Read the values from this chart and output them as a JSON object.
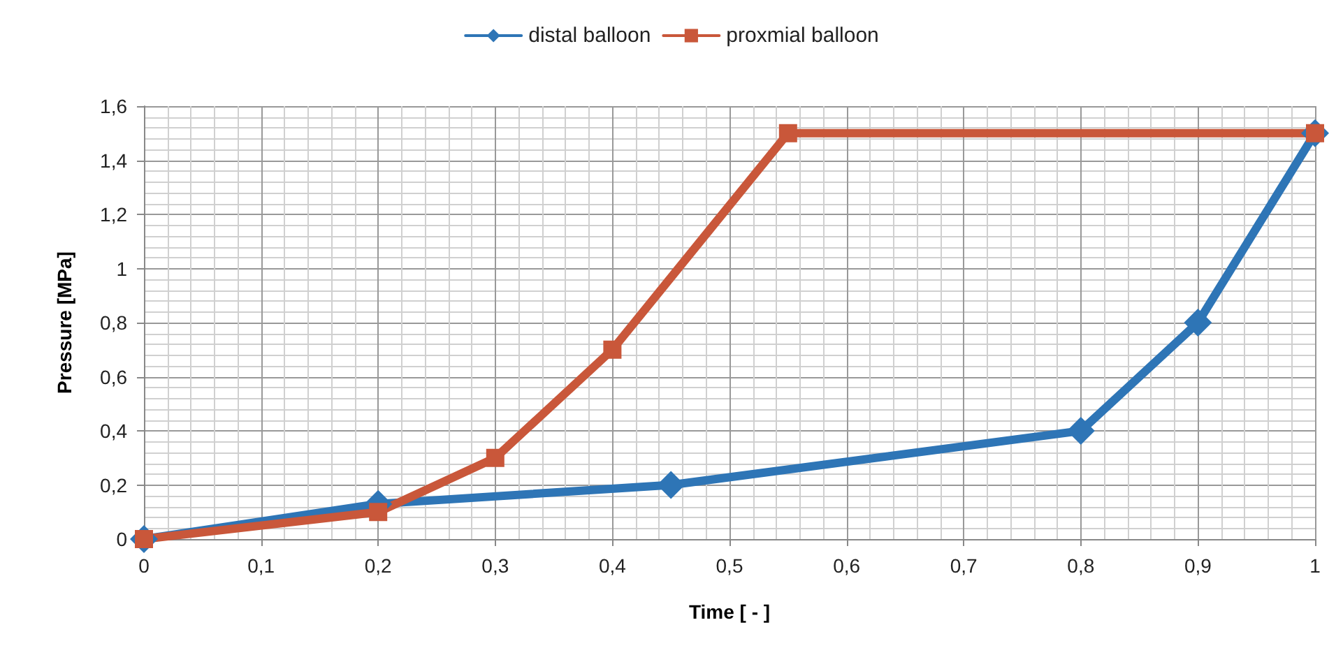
{
  "chart_data": {
    "type": "line",
    "xlabel": "Time [ - ]",
    "ylabel": "Pressure [MPa]",
    "xlim": [
      0,
      1
    ],
    "ylim": [
      0,
      1.6
    ],
    "xticks": [
      0,
      {
        "value": 0.1,
        "label": "0,1"
      },
      {
        "value": 0.2,
        "label": "0,2"
      },
      {
        "value": 0.3,
        "label": "0,3"
      },
      {
        "value": 0.4,
        "label": "0,4"
      },
      {
        "value": 0.5,
        "label": "0,5"
      },
      {
        "value": 0.6,
        "label": "0,6"
      },
      {
        "value": 0.7,
        "label": "0,7"
      },
      {
        "value": 0.8,
        "label": "0,8"
      },
      {
        "value": 0.9,
        "label": "0,9"
      },
      1
    ],
    "yticks": [
      0,
      {
        "value": 0.2,
        "label": "0,2"
      },
      {
        "value": 0.4,
        "label": "0,4"
      },
      {
        "value": 0.6,
        "label": "0,6"
      },
      {
        "value": 0.8,
        "label": "0,8"
      },
      1,
      {
        "value": 1.2,
        "label": "1,2"
      },
      {
        "value": 1.4,
        "label": "1,4"
      },
      {
        "value": 1.6,
        "label": "1,6"
      }
    ],
    "grid": true,
    "legend": "top",
    "line_style": "solid",
    "series": [
      {
        "name": "distal balloon",
        "color": "#2e75b6",
        "marker": "diamond",
        "x": [
          0,
          0.2,
          0.45,
          0.8,
          0.9,
          1
        ],
        "values": [
          0,
          0.13,
          0.2,
          0.4,
          0.8,
          1.5
        ]
      },
      {
        "name": "proxmial balloon",
        "color": "#c9573a",
        "marker": "square",
        "x": [
          0,
          0.2,
          0.3,
          0.4,
          0.55,
          1
        ],
        "values": [
          0,
          0.1,
          0.3,
          0.7,
          1.5,
          1.5
        ]
      }
    ]
  }
}
